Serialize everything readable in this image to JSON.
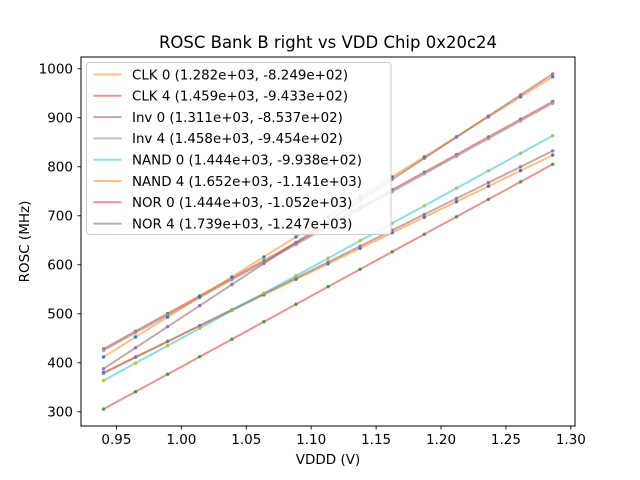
{
  "title": "ROSC Bank B right vs VDD Chip 0x20c24",
  "axes": {
    "xlabel": "VDDD (V)",
    "ylabel": "ROSC (MHz)",
    "x_tick_labels": [
      "0.95",
      "1.00",
      "1.05",
      "1.10",
      "1.15",
      "1.20",
      "1.25",
      "1.30"
    ],
    "y_tick_labels": [
      "300",
      "400",
      "500",
      "600",
      "700",
      "800",
      "900",
      "1000"
    ]
  },
  "colors": {
    "spine": "#000000",
    "background": "#ffffff",
    "legend_border": "#cccccc",
    "legend_background": "#ffffff"
  },
  "chart_data": {
    "type": "scatter",
    "title": "ROSC Bank B right vs VDD Chip 0x20c24",
    "xlabel": "VDDD (V)",
    "ylabel": "ROSC (MHz)",
    "xlim": [
      0.9227,
      1.3032
    ],
    "ylim": [
      271.0,
      1024.0
    ],
    "grid": false,
    "legend_position": "upper left",
    "line_alpha": 0.5,
    "x": [
      0.94,
      0.9647,
      0.9894,
      1.0141,
      1.0389,
      1.0636,
      1.0883,
      1.113,
      1.1377,
      1.1624,
      1.1871,
      1.2119,
      1.2366,
      1.2613,
      1.286
    ],
    "series": [
      {
        "name": "CLK 0",
        "label": "CLK 0 (1.282e+03, -8.249e+02)",
        "slope": 1282,
        "intercept": -824.9,
        "line_color": "#ff7f0e",
        "marker_color": "#1f77b4",
        "y": [
          380.2,
          411.9,
          443.5,
          475.2,
          507.0,
          538.6,
          570.3,
          602.0,
          633.6,
          665.3,
          697.0,
          728.8,
          760.4,
          792.1,
          823.8
        ]
      },
      {
        "name": "CLK 4",
        "label": "CLK 4 (1.459e+03, -9.433e+02)",
        "slope": 1459,
        "intercept": -943.3,
        "line_color": "#d62728",
        "marker_color": "#2ca02c",
        "y": [
          428.2,
          464.3,
          500.3,
          536.4,
          572.5,
          608.5,
          644.6,
          680.6,
          716.7,
          752.7,
          788.7,
          824.9,
          860.9,
          896.9,
          933.0
        ]
      },
      {
        "name": "Inv 0",
        "label": "Inv 0 (1.311e+03, -8.537e+02)",
        "slope": 1311,
        "intercept": -853.7,
        "line_color": "#8c564b",
        "marker_color": "#9467bd",
        "y": [
          378.6,
          411.1,
          443.4,
          475.8,
          508.3,
          540.7,
          573.1,
          605.5,
          637.9,
          670.3,
          702.7,
          735.2,
          767.6,
          800.0,
          832.3
        ]
      },
      {
        "name": "Inv 4",
        "label": "Inv 4 (1.458e+03, -9.454e+02)",
        "slope": 1458,
        "intercept": -945.4,
        "line_color": "#7f7f7f",
        "marker_color": "#e377c2",
        "y": [
          425.1,
          461.1,
          497.1,
          533.2,
          569.3,
          605.3,
          641.3,
          677.4,
          713.4,
          749.4,
          785.4,
          821.5,
          857.5,
          893.6,
          929.6
        ]
      },
      {
        "name": "NAND 0",
        "label": "NAND 0 (1.444e+03, -9.938e+02)",
        "slope": 1444,
        "intercept": -993.8,
        "line_color": "#17becf",
        "marker_color": "#bcbd22",
        "y": [
          363.6,
          399.3,
          434.9,
          470.6,
          506.4,
          542.0,
          577.7,
          613.4,
          649.0,
          684.7,
          720.4,
          756.2,
          791.8,
          827.5,
          863.4
        ]
      },
      {
        "name": "NAND 4",
        "label": "NAND 4 (1.652e+03, -1.141e+03)",
        "slope": 1652,
        "intercept": -1141.0,
        "line_color": "#ff7f0e",
        "marker_color": "#1f77b4",
        "y": [
          411.9,
          452.7,
          493.5,
          534.3,
          575.3,
          616.1,
          656.9,
          697.7,
          738.5,
          779.3,
          820.1,
          861.1,
          901.9,
          942.7,
          983.5
        ]
      },
      {
        "name": "NOR 0",
        "label": "NOR 0 (1.444e+03, -1.052e+03)",
        "slope": 1444,
        "intercept": -1052.0,
        "line_color": "#d62728",
        "marker_color": "#2ca02c",
        "y": [
          305.4,
          341.0,
          376.7,
          412.4,
          448.2,
          483.8,
          519.5,
          555.2,
          590.8,
          626.5,
          662.2,
          698.0,
          733.6,
          769.3,
          805.0
        ]
      },
      {
        "name": "NOR 4",
        "label": "NOR 4 (1.739e+03, -1.247e+03)",
        "slope": 1739,
        "intercept": -1247.0,
        "line_color": "#8c564b",
        "marker_color": "#9467bd",
        "y": [
          387.7,
          430.6,
          473.6,
          516.5,
          559.7,
          602.6,
          645.6,
          688.5,
          731.5,
          774.4,
          817.3,
          860.5,
          903.4,
          946.4,
          989.4
        ]
      }
    ]
  }
}
